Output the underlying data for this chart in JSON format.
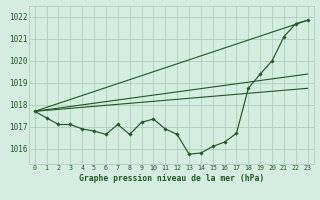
{
  "xlabel": "Graphe pression niveau de la mer (hPa)",
  "background_color": "#d4ede0",
  "grid_color": "#a8c8b8",
  "line_color": "#1a5c1a",
  "xlim": [
    -0.5,
    23.5
  ],
  "ylim": [
    1015.3,
    1022.5
  ],
  "yticks": [
    1016,
    1017,
    1018,
    1019,
    1020,
    1021,
    1022
  ],
  "xticks": [
    0,
    1,
    2,
    3,
    4,
    5,
    6,
    7,
    8,
    9,
    10,
    11,
    12,
    13,
    14,
    15,
    16,
    17,
    18,
    19,
    20,
    21,
    22,
    23
  ],
  "hours": [
    0,
    1,
    2,
    3,
    4,
    5,
    6,
    7,
    8,
    9,
    10,
    11,
    12,
    13,
    14,
    15,
    16,
    17,
    18,
    19,
    20,
    21,
    22,
    23
  ],
  "pressure": [
    1017.7,
    1017.4,
    1017.1,
    1017.1,
    1016.9,
    1016.8,
    1016.65,
    1017.1,
    1016.65,
    1017.2,
    1017.35,
    1016.9,
    1016.65,
    1015.75,
    1015.8,
    1016.1,
    1016.3,
    1016.7,
    1018.75,
    1019.4,
    1020.0,
    1021.1,
    1021.7,
    1021.85
  ],
  "ref_line_ends": [
    1021.85,
    1019.4,
    1018.75
  ]
}
